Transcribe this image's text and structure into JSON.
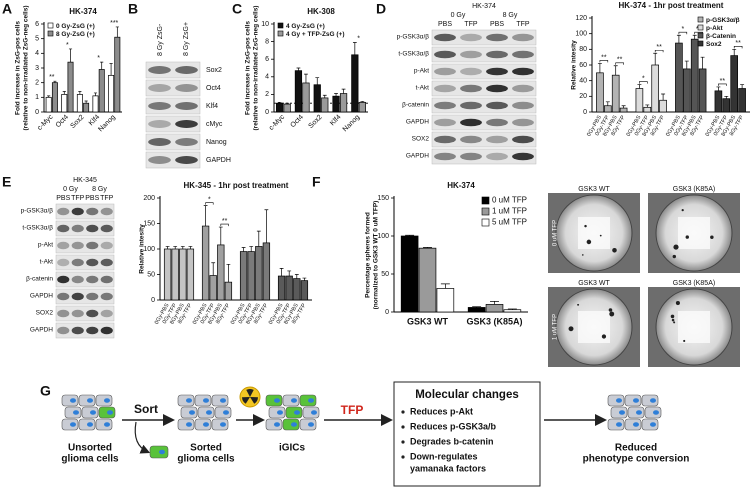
{
  "panels": [
    "A",
    "B",
    "C",
    "D",
    "E",
    "F",
    "G"
  ],
  "chart_data": [
    {
      "type": "bar",
      "title": "HK-374",
      "ylabel": [
        "Fold increase in ZsG-pos cells",
        "(relative to non-irradiated ZsG-neg cells)"
      ],
      "categories": [
        "c-Myc",
        "Oct4",
        "Sox2",
        "Klf4",
        "Nanog"
      ],
      "series": [
        {
          "name": "0 Gy-ZsG (+)",
          "color": "#ffffff",
          "values": [
            1.0,
            1.2,
            1.2,
            1.1,
            2.5
          ],
          "errors": [
            0.1,
            0.2,
            0.2,
            0.2,
            0.8
          ]
        },
        {
          "name": "8 Gy-ZsG (+)",
          "color": "#8c8c8c",
          "values": [
            2.0,
            3.4,
            0.6,
            2.9,
            5.1
          ],
          "errors": [
            0.1,
            0.9,
            0.15,
            0.5,
            0.7
          ]
        }
      ],
      "ylim": [
        0,
        6
      ],
      "yticks": [
        0,
        1,
        2,
        3,
        4,
        5,
        6
      ],
      "legend": "upper left",
      "annotations": [
        {
          "text": "**",
          "category": 0
        },
        {
          "text": "*",
          "category": 1
        },
        {
          "text": "*",
          "category": 3
        },
        {
          "text": "***",
          "category": 4
        }
      ]
    },
    {
      "type": "bar",
      "title": "HK-308",
      "ylabel": [
        "Fold increase in ZsG-pos cells",
        "(relative to non-irradiated ZsG-neg cells)"
      ],
      "categories": [
        "c-Myc",
        "Oct4",
        "Sox2",
        "Klf4",
        "Nanog"
      ],
      "series": [
        {
          "name": "4 Gy-ZsG (+)",
          "color": "#111111",
          "values": [
            1.0,
            4.7,
            3.1,
            1.8,
            6.5
          ],
          "errors": [
            0.1,
            0.3,
            0.8,
            0.3,
            1.4
          ]
        },
        {
          "name": "4 Gy + TFP-ZsG (+)",
          "color": "#9a9a9a",
          "values": [
            0.9,
            3.3,
            1.6,
            2.1,
            1.1
          ],
          "errors": [
            0.1,
            1.0,
            0.3,
            0.5,
            0.1
          ]
        }
      ],
      "ylim": [
        0,
        10
      ],
      "yticks": [
        0,
        2,
        4,
        6,
        8,
        10
      ],
      "hline": 1,
      "legend": "upper left",
      "annotations": [
        {
          "text": "*",
          "category": 4
        }
      ]
    },
    {
      "type": "bar",
      "title": "HK-374 - 1hr post treatment",
      "ylabel": [
        "Relative intesity"
      ],
      "group_by": "series",
      "categories": [
        "0Gy-PBS",
        "0Gy-TFP",
        "8Gy-PBS",
        "8Gy-TFP"
      ],
      "series": [
        {
          "name": "p-GSK3α/β",
          "color": "#b3b3b3",
          "values": [
            50,
            8,
            47,
            5
          ],
          "errors": [
            12,
            5,
            12,
            3
          ]
        },
        {
          "name": "p-Akt",
          "color": "#dcdcdc",
          "values": [
            30,
            6,
            60,
            15
          ],
          "errors": [
            5,
            3,
            15,
            8
          ]
        },
        {
          "name": "β-Catenin",
          "color": "#555555",
          "values": [
            88,
            55,
            93,
            55
          ],
          "errors": [
            10,
            10,
            5,
            15
          ]
        },
        {
          "name": "Sox2",
          "color": "#333333",
          "values": [
            27,
            17,
            72,
            30
          ],
          "errors": [
            5,
            3,
            8,
            5
          ]
        }
      ],
      "ylim": [
        0,
        120
      ],
      "yticks": [
        0,
        20,
        40,
        60,
        80,
        100,
        120
      ],
      "legend": "upper right",
      "annotations": [
        {
          "text": "**",
          "series": 0,
          "categories": [
            0,
            1
          ]
        },
        {
          "text": "**",
          "series": 0,
          "categories": [
            2,
            3
          ]
        },
        {
          "text": "*",
          "series": 1,
          "categories": [
            0,
            1
          ]
        },
        {
          "text": "**",
          "series": 1,
          "categories": [
            2,
            3
          ]
        },
        {
          "text": "*",
          "series": 2,
          "categories": [
            0,
            1
          ]
        },
        {
          "text": "**",
          "series": 2,
          "categories": [
            2,
            3
          ]
        },
        {
          "text": "**",
          "series": 3,
          "categories": [
            0,
            1
          ]
        },
        {
          "text": "**",
          "series": 3,
          "categories": [
            2,
            3
          ]
        }
      ]
    },
    {
      "type": "bar",
      "title": "HK-345 - 1hr post treatment",
      "ylabel": [
        "Relative intesity"
      ],
      "group_by": "series",
      "categories": [
        "0Gy-PBS",
        "0Gy-TFP",
        "8Gy-PBS",
        "8Gy-TFP"
      ],
      "series": [
        {
          "color": "#c4c4c4",
          "values": [
            100,
            100,
            100,
            100
          ],
          "errors": [
            5,
            5,
            5,
            5
          ]
        },
        {
          "color": "#a0a0a0",
          "values": [
            145,
            48,
            108,
            35
          ],
          "errors": [
            40,
            25,
            35,
            35
          ]
        },
        {
          "color": "#7a7a7a",
          "values": [
            95,
            95,
            105,
            112
          ],
          "errors": [
            8,
            10,
            30,
            65
          ]
        },
        {
          "color": "#5a5a5a",
          "values": [
            47,
            47,
            42,
            38
          ],
          "errors": [
            15,
            10,
            8,
            5
          ]
        }
      ],
      "ylim": [
        0,
        200
      ],
      "yticks": [
        0,
        50,
        100,
        150,
        200
      ],
      "annotations": [
        {
          "text": "*",
          "series": 1,
          "categories": [
            0,
            1
          ]
        },
        {
          "text": "**",
          "series": 1,
          "categories": [
            2,
            3
          ]
        }
      ]
    },
    {
      "type": "bar",
      "title": "HK-374",
      "ylabel": [
        "Percentage spheres formed",
        "(normalized to GSK3 WT 0 uM TFP)"
      ],
      "categories": [
        "GSK3 WT",
        "GSK3 (K85A)"
      ],
      "series": [
        {
          "name": "0 uM TFP",
          "color": "#000000",
          "values": [
            100,
            6
          ],
          "errors": [
            1,
            1
          ]
        },
        {
          "name": "1 uM TFP",
          "color": "#9a9a9a",
          "values": [
            84,
            10
          ],
          "errors": [
            1,
            4
          ]
        },
        {
          "name": "5 uM TFP",
          "color": "#ffffff",
          "values": [
            31,
            3
          ],
          "errors": [
            6,
            1
          ]
        }
      ],
      "ylim": [
        0,
        150
      ],
      "yticks": [
        0,
        50,
        100,
        150
      ],
      "legend": "upper right"
    }
  ],
  "blots": [
    {
      "columns": [
        "8 Gy ZsG-",
        "8 Gy ZsG+"
      ],
      "rows": [
        "Sox2",
        "Oct4",
        "Klf4",
        "cMyc",
        "Nanog",
        "GAPDH"
      ]
    },
    {
      "title": "HK-374",
      "doses": [
        "0 Gy",
        "8 Gy"
      ],
      "treatments": [
        "PBS",
        "TFP",
        "PBS",
        "TFP"
      ],
      "rows": [
        "p-GSK3α/β",
        "t-GSK3α/β",
        "p-Akt",
        "t-Akt",
        "β-catenin",
        "GAPDH",
        "SOX2",
        "GAPDH"
      ]
    },
    {
      "title": "HK-345",
      "doses": [
        "0 Gy",
        "8 Gy"
      ],
      "treatments": [
        "PBS",
        "TFP",
        "PBS",
        "TFP"
      ],
      "rows": [
        "p-GSK3α/β",
        "t-GSK3α/β",
        "p-Akt",
        "t-Akt",
        "β-catenin",
        "GAPDH",
        "SOX2",
        "GAPDH"
      ]
    }
  ],
  "spheres": {
    "columns": [
      "GSK3 WT",
      "GSK3 (K85A)"
    ],
    "rows": [
      "0 uM TFP",
      "1 uM TFP"
    ]
  },
  "diagram": {
    "unsorted": [
      "Unsorted",
      "glioma cells"
    ],
    "sort": "Sort",
    "sorted": [
      "Sorted",
      "glioma cells"
    ],
    "igics": "iGICs",
    "tfp": "TFP",
    "box_title": "Molecular changes",
    "bullets": [
      [
        "Reduces p-Akt"
      ],
      [
        "Reduces p-GSK3a/b"
      ],
      [
        "Degrades b-catenin"
      ],
      [
        "Down-regulates",
        "yamanaka factors"
      ]
    ],
    "result": [
      "Reduced",
      "phenotype conversion"
    ]
  }
}
